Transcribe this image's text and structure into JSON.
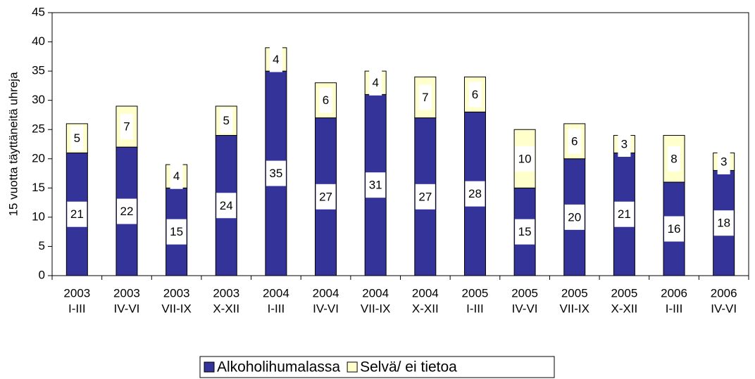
{
  "chart_data": {
    "type": "stacked_bar",
    "y_label": "15 vuotta täyttäneitä uhreja",
    "categories": [
      [
        "2003",
        "I-III"
      ],
      [
        "2003",
        "IV-VI"
      ],
      [
        "2003",
        "VII-IX"
      ],
      [
        "2003",
        "X-XII"
      ],
      [
        "2004",
        "I-III"
      ],
      [
        "2004",
        "IV-VI"
      ],
      [
        "2004",
        "VII-IX"
      ],
      [
        "2004",
        "X-XII"
      ],
      [
        "2005",
        "I-III"
      ],
      [
        "2005",
        "IV-VI"
      ],
      [
        "2005",
        "VII-IX"
      ],
      [
        "2005",
        "X-XII"
      ],
      [
        "2006",
        "I-III"
      ],
      [
        "2006",
        "IV-VI"
      ]
    ],
    "series": [
      {
        "name": "Alkoholihumalassa",
        "color": "#333399",
        "values": [
          21,
          22,
          15,
          24,
          35,
          27,
          31,
          27,
          28,
          15,
          20,
          21,
          16,
          18
        ]
      },
      {
        "name": "Selvä/ ei tietoa",
        "color": "#ffffcc",
        "values": [
          5,
          7,
          4,
          5,
          4,
          6,
          4,
          7,
          6,
          10,
          6,
          3,
          8,
          3
        ]
      }
    ],
    "ylim": [
      0,
      45
    ],
    "yticks": [
      0,
      5,
      10,
      15,
      20,
      25,
      30,
      35,
      40,
      45
    ],
    "legend": "bottom"
  }
}
